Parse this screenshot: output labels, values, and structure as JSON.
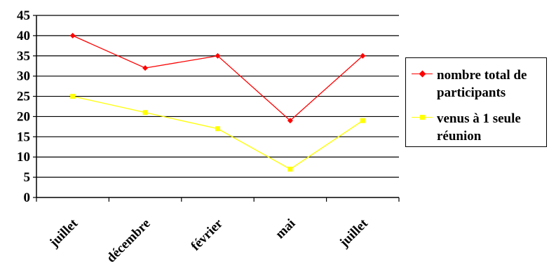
{
  "chart_data": {
    "type": "line",
    "categories": [
      "juillet",
      "décembre",
      "février",
      "mai",
      "juillet"
    ],
    "series": [
      {
        "name": "nombre total de participants",
        "color": "#ff0000",
        "marker": "diamond",
        "values": [
          40,
          32,
          35,
          19,
          35
        ]
      },
      {
        "name": "venus à 1 seule réunion",
        "color": "#ffff00",
        "marker": "square",
        "values": [
          25,
          21,
          17,
          7,
          19
        ]
      }
    ],
    "ylim": [
      0,
      45
    ],
    "yticks": [
      0,
      5,
      10,
      15,
      20,
      25,
      30,
      35,
      40,
      45
    ],
    "grid": "horizontal",
    "legend": "right"
  }
}
